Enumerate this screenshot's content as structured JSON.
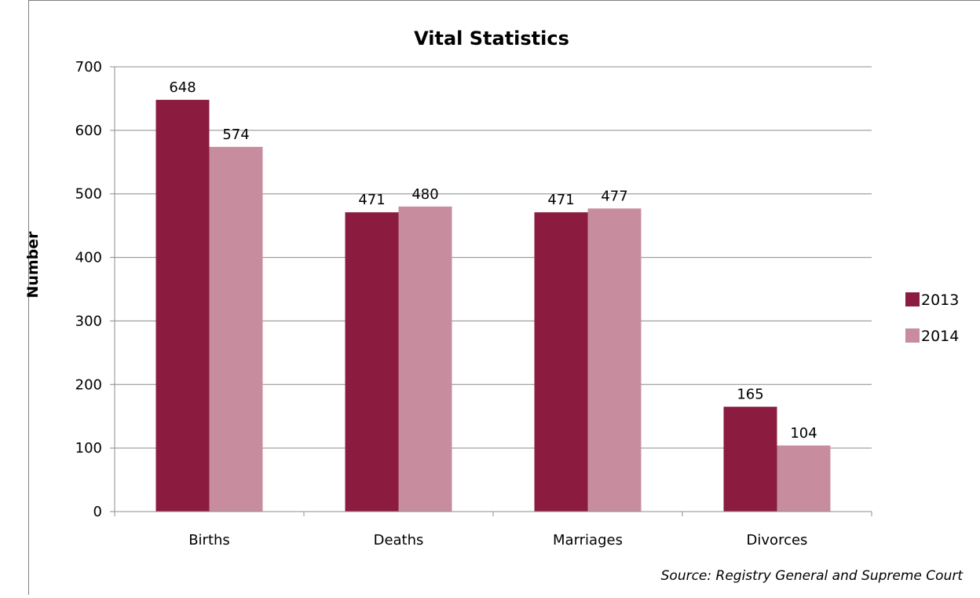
{
  "chart_data": {
    "type": "bar",
    "title": "Vital Statistics",
    "xlabel": "",
    "ylabel": "Number",
    "categories": [
      "Births",
      "Deaths",
      "Marriages",
      "Divorces"
    ],
    "series": [
      {
        "name": "2013",
        "values": [
          648,
          471,
          471,
          165
        ],
        "color": "#8b1c40"
      },
      {
        "name": "2014",
        "values": [
          574,
          480,
          477,
          104
        ],
        "color": "#c78d9f"
      }
    ],
    "ylim": [
      0,
      700
    ],
    "yticks": [
      0,
      100,
      200,
      300,
      400,
      500,
      600,
      700
    ],
    "grid": true,
    "legend_position": "right",
    "data_labels": true,
    "source": "Source:  Registry General and Supreme Court"
  }
}
